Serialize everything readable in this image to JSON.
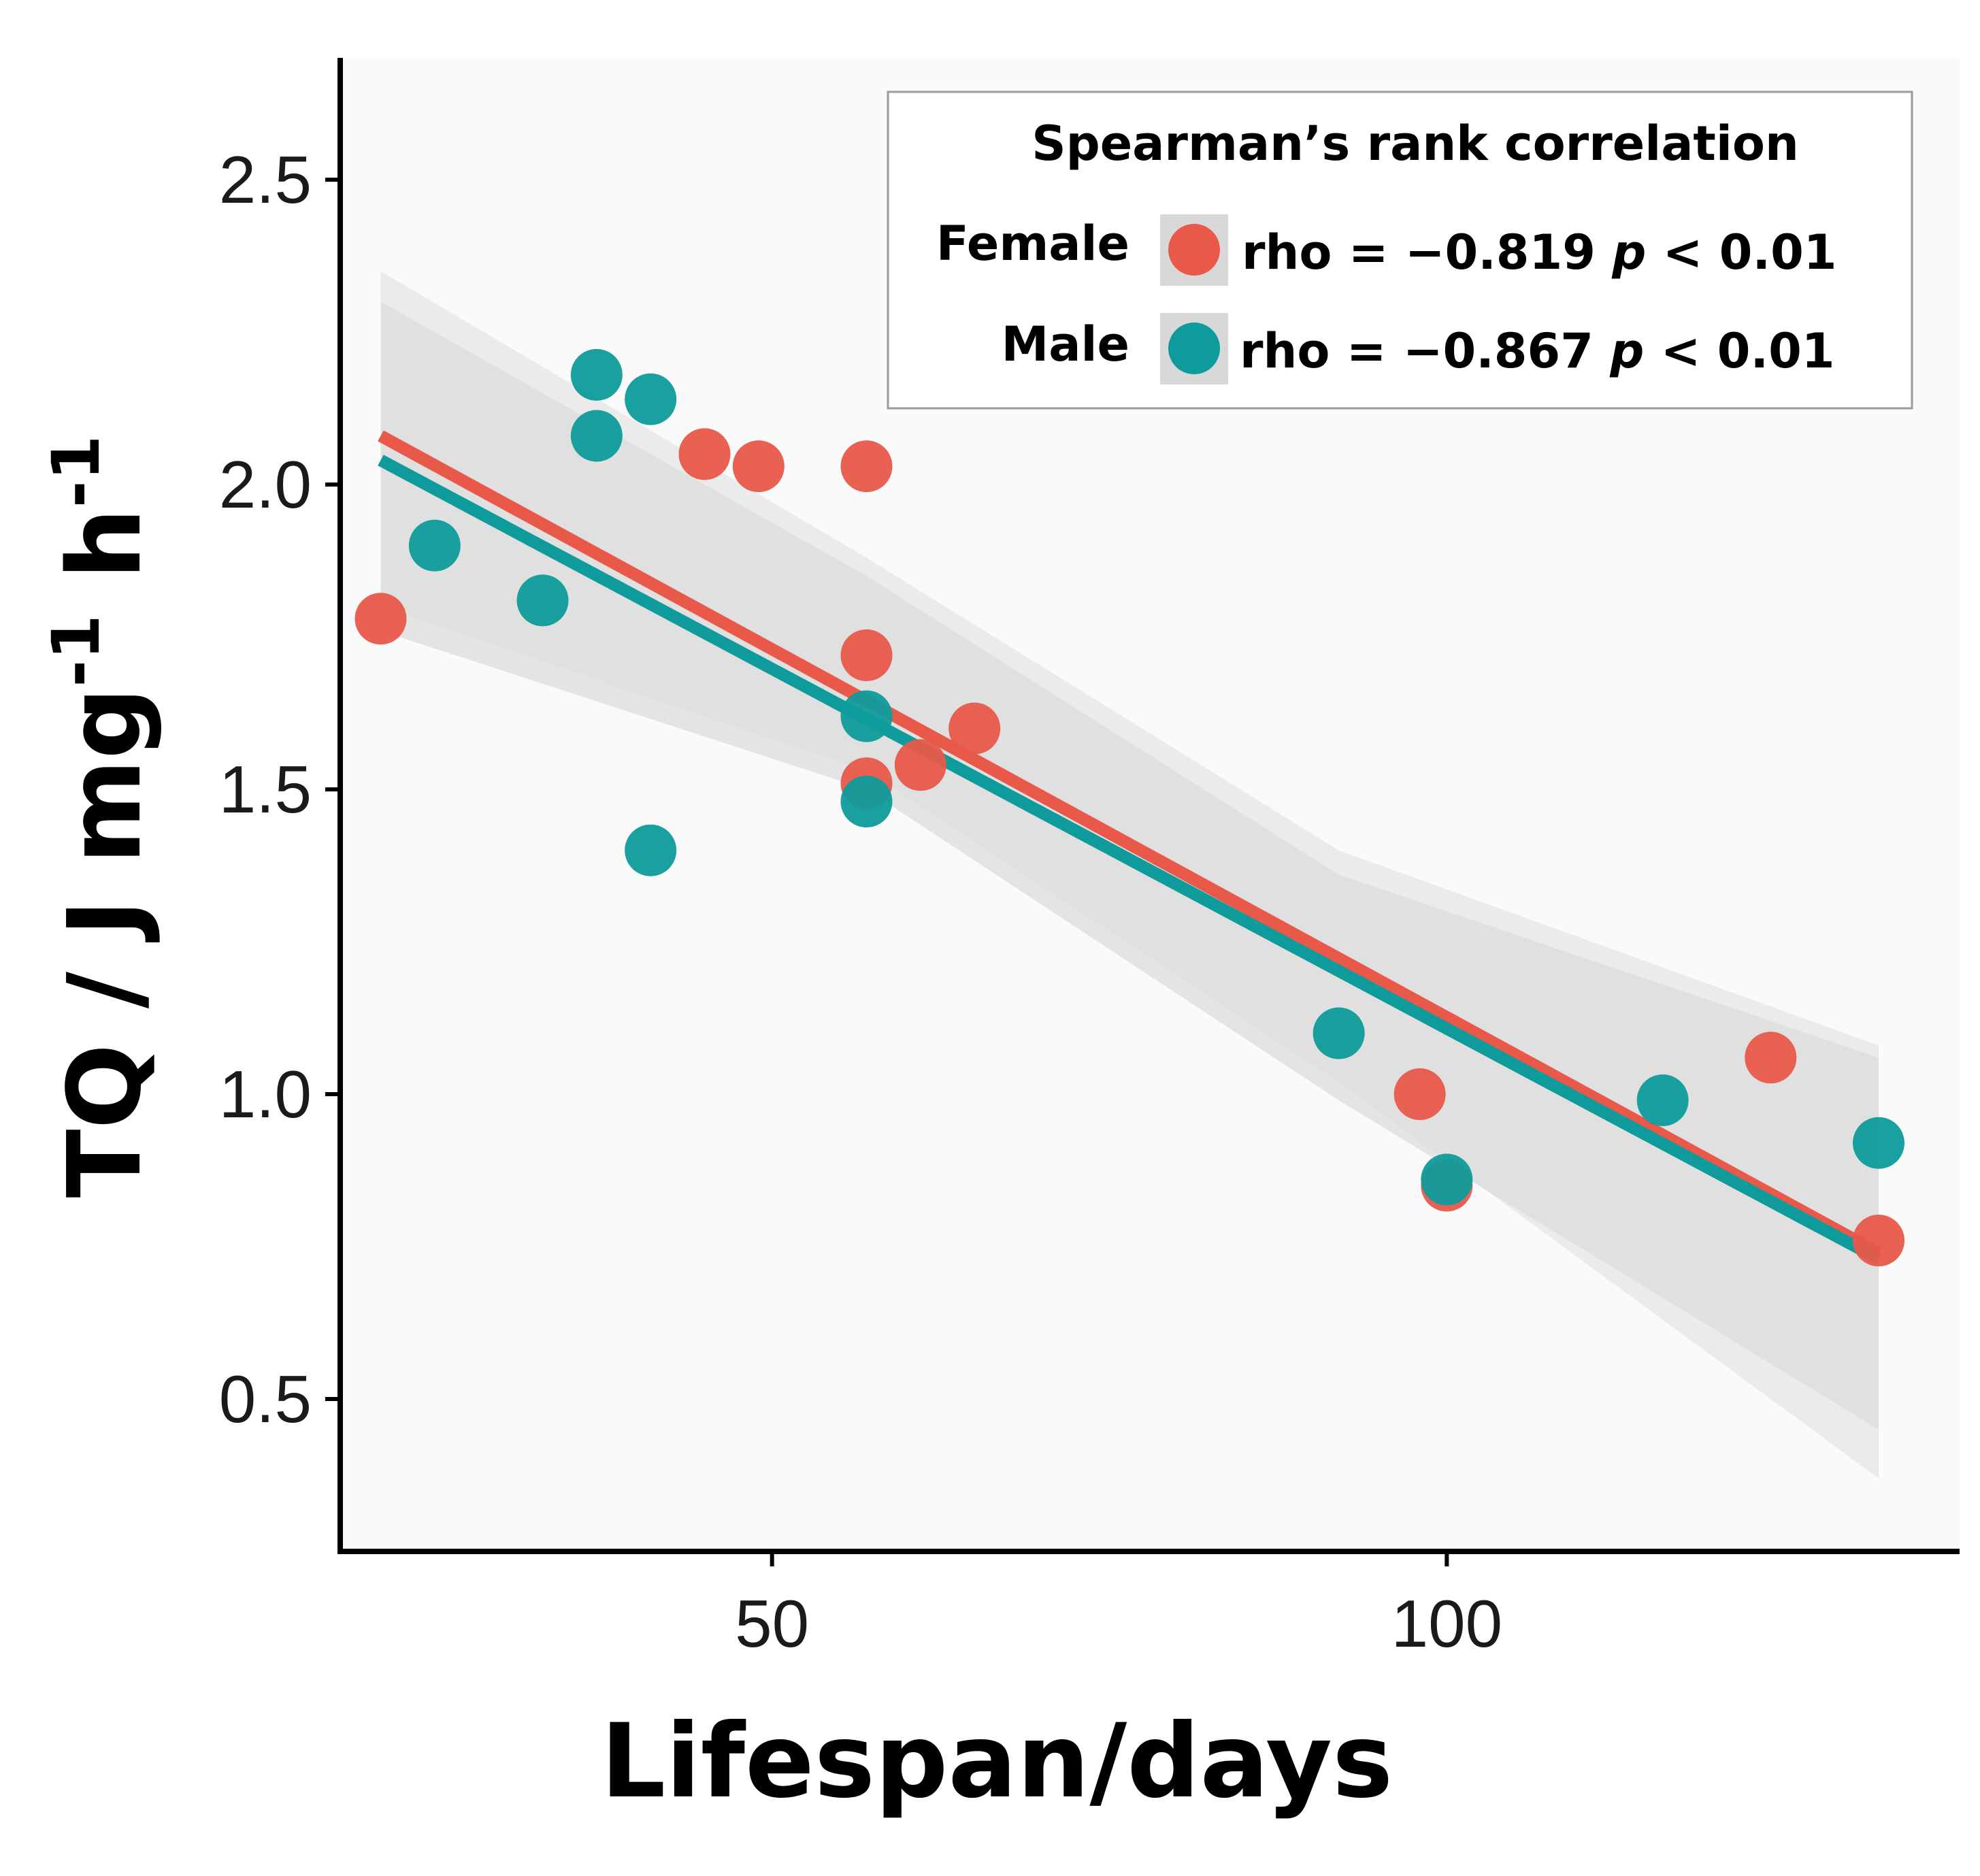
{
  "colors": {
    "female": "#e8594a",
    "male": "#0f9b9b",
    "panel": "#fafafa",
    "band_outer": "#ebebeb",
    "band_inner": "#dcdcdc"
  },
  "chart_data": {
    "type": "scatter",
    "xlabel": "Lifespan/days",
    "ylabel": {
      "base": "TQ / J mg",
      "sup1": "-1",
      "mid": " h",
      "sup2": "-1"
    },
    "xlim": [
      18,
      138
    ],
    "ylim": [
      0.25,
      2.7
    ],
    "x_ticks": [
      50,
      100
    ],
    "y_ticks": [
      0.5,
      1.0,
      1.5,
      2.0,
      2.5
    ],
    "x_tick_labels": [
      "50",
      "100"
    ],
    "y_tick_labels": [
      "0.5",
      "1.0",
      "1.5",
      "2.0",
      "2.5"
    ],
    "legend": {
      "title": "Spearman’s rank correlation",
      "entries": [
        {
          "label": "Female",
          "rho": "rho = −0.819",
          "p": "p",
          "p_value": "< 0.01",
          "color": "#e8594a"
        },
        {
          "label": "Male",
          "rho": "rho = −0.867",
          "p": "p",
          "p_value": "< 0.01",
          "color": "#0f9b9b"
        }
      ]
    },
    "series": [
      {
        "name": "Female",
        "color": "#e8594a",
        "points": [
          {
            "x": 21,
            "y": 1.78
          },
          {
            "x": 45,
            "y": 2.05
          },
          {
            "x": 49,
            "y": 2.03
          },
          {
            "x": 57,
            "y": 2.03
          },
          {
            "x": 57,
            "y": 1.72
          },
          {
            "x": 57,
            "y": 1.51
          },
          {
            "x": 61,
            "y": 1.54
          },
          {
            "x": 65,
            "y": 1.6
          },
          {
            "x": 98,
            "y": 1.0
          },
          {
            "x": 100,
            "y": 0.85
          },
          {
            "x": 124,
            "y": 1.06
          },
          {
            "x": 132,
            "y": 0.76
          }
        ],
        "fit": {
          "x0": 21,
          "y0": 2.08,
          "x1": 132,
          "y1": 0.74
        }
      },
      {
        "name": "Male",
        "color": "#0f9b9b",
        "points": [
          {
            "x": 25,
            "y": 1.9
          },
          {
            "x": 33,
            "y": 1.81
          },
          {
            "x": 37,
            "y": 2.18
          },
          {
            "x": 37,
            "y": 2.08
          },
          {
            "x": 41,
            "y": 2.14
          },
          {
            "x": 41,
            "y": 1.4
          },
          {
            "x": 57,
            "y": 1.62
          },
          {
            "x": 57,
            "y": 1.48
          },
          {
            "x": 92,
            "y": 1.1
          },
          {
            "x": 100,
            "y": 0.86
          },
          {
            "x": 116,
            "y": 0.99
          },
          {
            "x": 132,
            "y": 0.92
          }
        ],
        "fit": {
          "x0": 21,
          "y0": 2.04,
          "x1": 132,
          "y1": 0.73
        }
      }
    ],
    "confidence_bands": [
      {
        "name": "Female",
        "x": [
          21,
          57,
          92,
          132
        ],
        "lower": [
          1.8,
          1.53,
          1.02,
          0.37
        ],
        "upper": [
          2.35,
          1.88,
          1.4,
          1.08
        ]
      },
      {
        "name": "Male",
        "x": [
          21,
          57,
          92,
          132
        ],
        "lower": [
          1.76,
          1.5,
          0.99,
          0.45
        ],
        "upper": [
          2.3,
          1.85,
          1.36,
          1.06
        ]
      }
    ]
  }
}
